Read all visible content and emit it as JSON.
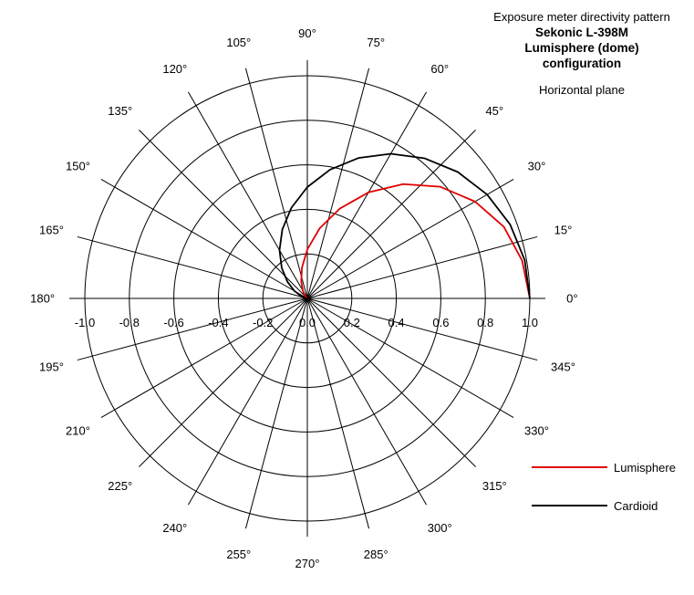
{
  "title": {
    "line1": "Exposure meter directivity pattern",
    "line2": "Sekonic L-398M",
    "line3": "Lumisphere (dome)",
    "line4": "configuration",
    "subtitle": "Horizontal plane"
  },
  "chart_data": {
    "type": "polar-line",
    "r_range": [
      0,
      1.0
    ],
    "r_ticks": [
      0.2,
      0.4,
      0.6,
      0.8,
      1.0
    ],
    "radial_tick_labels": [
      "-1.0",
      "-0.8",
      "-0.6",
      "-0.4",
      "-0.2",
      "0.0",
      "0.2",
      "0.4",
      "0.6",
      "0.8",
      "1.0"
    ],
    "radial_tick_values": [
      -1.0,
      -0.8,
      -0.6,
      -0.4,
      -0.2,
      0.0,
      0.2,
      0.4,
      0.6,
      0.8,
      1.0
    ],
    "angle_ticks": [
      0,
      15,
      30,
      45,
      60,
      75,
      90,
      105,
      120,
      135,
      150,
      165,
      180,
      195,
      210,
      225,
      240,
      255,
      270,
      285,
      300,
      315,
      330,
      345
    ],
    "angle_tick_labels": [
      "0°",
      "15°",
      "30°",
      "45°",
      "60°",
      "75°",
      "90°",
      "105°",
      "120°",
      "135°",
      "150°",
      "165°",
      "180°",
      "195°",
      "210°",
      "225°",
      "240°",
      "255°",
      "270°",
      "285°",
      "300°",
      "315°",
      "330°",
      "345°"
    ],
    "grid": true,
    "legend_position": "bottom-right",
    "series": [
      {
        "name": "Lumisphere",
        "color": "#e00000",
        "points": [
          [
            0,
            1.0
          ],
          [
            10,
            0.98
          ],
          [
            20,
            0.94
          ],
          [
            30,
            0.87
          ],
          [
            40,
            0.78
          ],
          [
            50,
            0.67
          ],
          [
            60,
            0.55
          ],
          [
            70,
            0.43
          ],
          [
            80,
            0.32
          ],
          [
            90,
            0.22
          ],
          [
            100,
            0.14
          ],
          [
            110,
            0.08
          ],
          [
            120,
            0.04
          ],
          [
            130,
            0.02
          ],
          [
            140,
            0.0
          ],
          [
            180,
            0.0
          ]
        ]
      },
      {
        "name": "Cardioid",
        "color": "#000000",
        "points": [
          [
            0,
            1.0
          ],
          [
            10,
            0.992
          ],
          [
            20,
            0.97
          ],
          [
            30,
            0.933
          ],
          [
            40,
            0.883
          ],
          [
            50,
            0.821
          ],
          [
            60,
            0.75
          ],
          [
            70,
            0.671
          ],
          [
            80,
            0.587
          ],
          [
            90,
            0.5
          ],
          [
            100,
            0.413
          ],
          [
            110,
            0.329
          ],
          [
            120,
            0.25
          ],
          [
            130,
            0.179
          ],
          [
            140,
            0.117
          ],
          [
            150,
            0.067
          ],
          [
            160,
            0.03
          ],
          [
            170,
            0.008
          ],
          [
            180,
            0.0
          ]
        ]
      }
    ]
  }
}
